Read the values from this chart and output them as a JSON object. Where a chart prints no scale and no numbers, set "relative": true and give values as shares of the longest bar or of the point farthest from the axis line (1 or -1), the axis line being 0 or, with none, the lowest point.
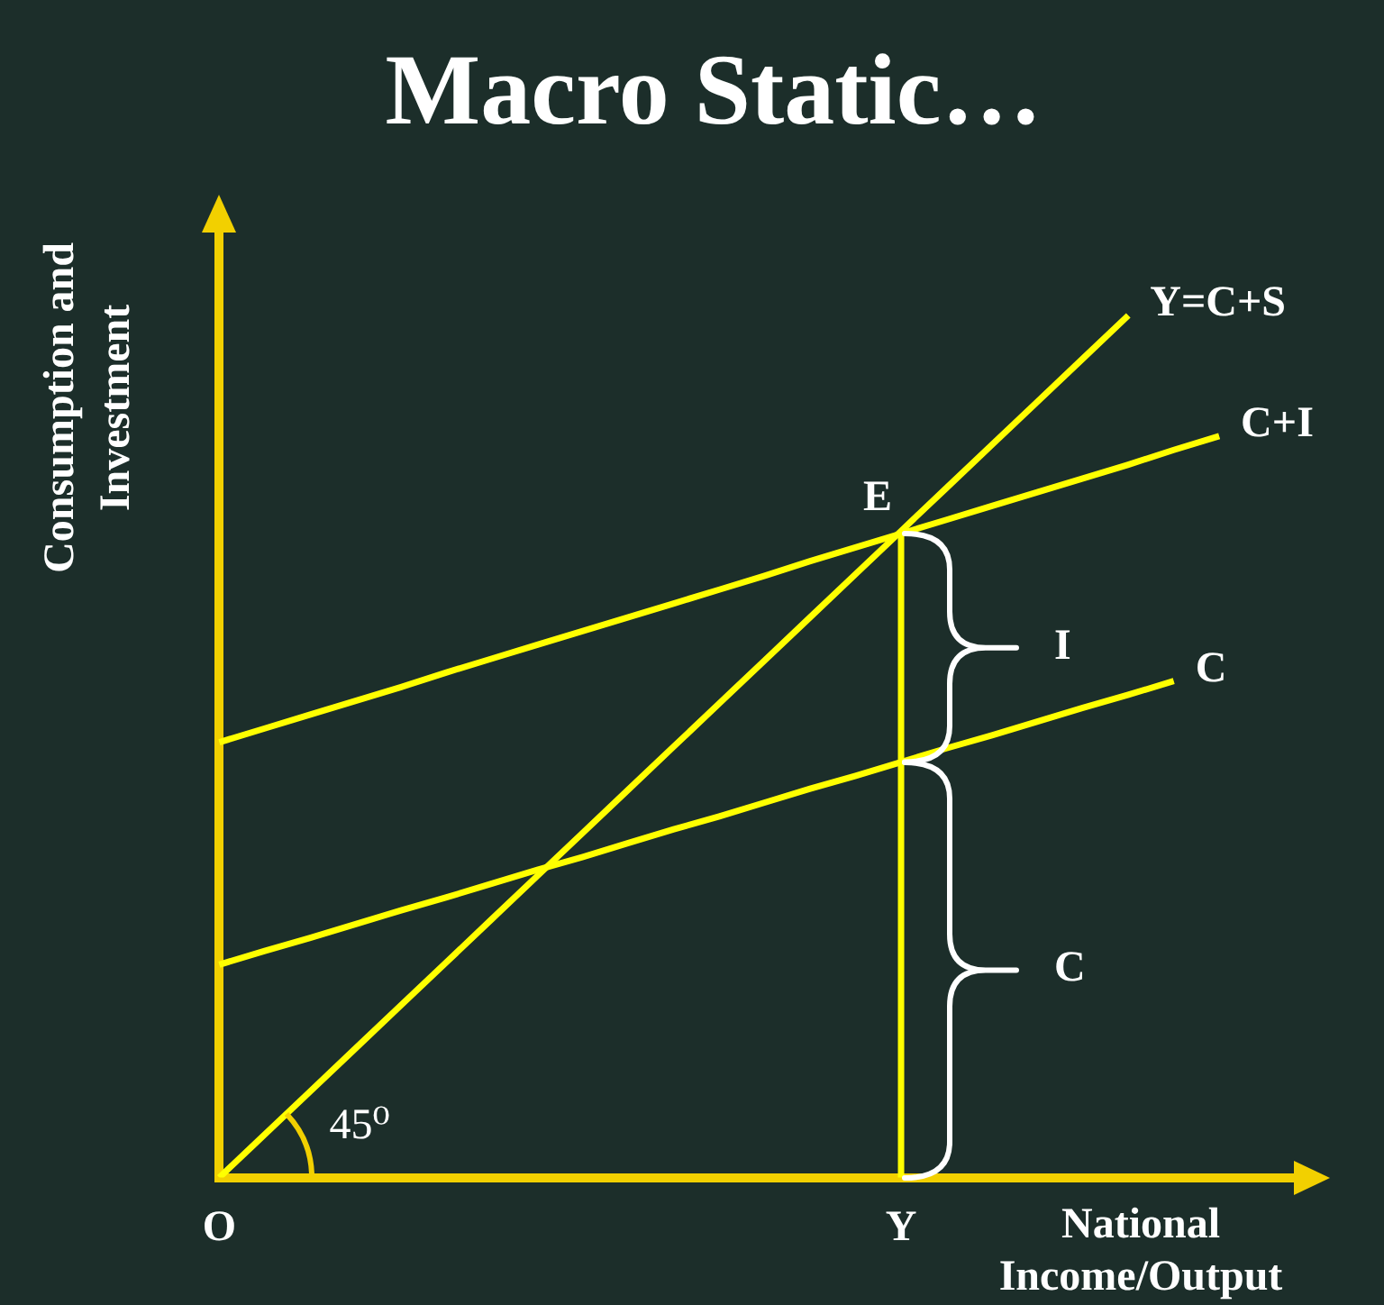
{
  "chart_data": {
    "type": "line",
    "title": "Macro Static…",
    "xlabel": "National Income/Output",
    "ylabel": "Consumption and Investment",
    "relative": true,
    "categories": [
      "O",
      null,
      null,
      null,
      null,
      null,
      null,
      null,
      null,
      null,
      null,
      null,
      null,
      null,
      null,
      "Y",
      null,
      null,
      null,
      null,
      null,
      null,
      null,
      null,
      null
    ],
    "series": [
      {
        "name": "Y=C+S",
        "color": "#ffff00",
        "values": [
          0,
          0.05,
          0.1,
          0.15,
          0.2,
          0.25,
          0.3,
          0.35,
          0.4,
          0.45,
          0.5,
          0.55,
          0.6,
          0.65,
          0.7,
          0.75,
          0.8,
          0.85,
          0.9,
          0.95,
          1,
          null,
          null,
          null,
          null
        ]
      },
      {
        "name": "C+I",
        "color": "#ffff00",
        "values": [
          0.505,
          0.521,
          0.537,
          0.553,
          0.569,
          0.586,
          0.602,
          0.618,
          0.634,
          0.65,
          0.666,
          0.682,
          0.698,
          0.715,
          0.731,
          0.747,
          0.763,
          0.779,
          0.795,
          0.811,
          0.827,
          0.844,
          0.86,
          null,
          null
        ]
      },
      {
        "name": "C",
        "color": "#ffff00",
        "values": [
          0.247,
          0.263,
          0.278,
          0.294,
          0.31,
          0.325,
          0.341,
          0.357,
          0.372,
          0.388,
          0.404,
          0.419,
          0.435,
          0.451,
          0.466,
          0.482,
          0.498,
          0.513,
          0.529,
          0.545,
          0.56,
          0.576,
          null,
          null,
          null
        ]
      }
    ],
    "ref_lines": [
      {
        "axis": "x",
        "value": "Y",
        "color": "#ffff00"
      }
    ],
    "annotations": [
      {
        "text": "E",
        "x": "Y",
        "y": 0.747
      },
      "I",
      "C",
      "45⁰"
    ]
  }
}
